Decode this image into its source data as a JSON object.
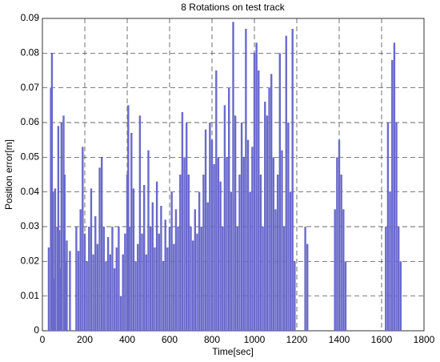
{
  "chart_data": {
    "type": "bar",
    "title": "8 Rotations on test track",
    "x_label": "Time[sec]",
    "y_label": "Position error[m]",
    "x": [
      30,
      40,
      45,
      50,
      55,
      60,
      70,
      75,
      80,
      85,
      90,
      100,
      105,
      110,
      115,
      130,
      160,
      170,
      180,
      190,
      200,
      210,
      220,
      230,
      240,
      250,
      260,
      270,
      280,
      290,
      300,
      310,
      320,
      330,
      340,
      350,
      360,
      370,
      380,
      390,
      400,
      405,
      410,
      420,
      430,
      440,
      450,
      460,
      470,
      480,
      490,
      500,
      510,
      520,
      530,
      540,
      550,
      560,
      570,
      580,
      590,
      600,
      610,
      620,
      630,
      640,
      650,
      660,
      670,
      680,
      690,
      700,
      710,
      720,
      730,
      740,
      750,
      760,
      770,
      780,
      790,
      800,
      810,
      820,
      830,
      840,
      850,
      860,
      870,
      880,
      890,
      900,
      910,
      920,
      930,
      940,
      950,
      960,
      970,
      980,
      990,
      1000,
      1010,
      1020,
      1030,
      1040,
      1050,
      1060,
      1070,
      1080,
      1090,
      1100,
      1110,
      1120,
      1130,
      1140,
      1150,
      1160,
      1170,
      1180,
      1190,
      1240,
      1250,
      1380,
      1390,
      1400,
      1410,
      1420,
      1430,
      1620,
      1630,
      1640,
      1650,
      1660,
      1670,
      1680,
      1690
    ],
    "values": [
      0.024,
      0.07,
      0.08,
      0.04,
      0.015,
      0.041,
      0.03,
      0.059,
      0.029,
      0.018,
      0.06,
      0.062,
      0.045,
      0.02,
      0.026,
      0.023,
      0.03,
      0.023,
      0.035,
      0.053,
      0.028,
      0.02,
      0.03,
      0.041,
      0.022,
      0.033,
      0.025,
      0.047,
      0.05,
      0.03,
      0.02,
      0.027,
      0.022,
      0.03,
      0.018,
      0.024,
      0.03,
      0.01,
      0.022,
      0.028,
      0.045,
      0.065,
      0.03,
      0.057,
      0.041,
      0.02,
      0.025,
      0.062,
      0.028,
      0.042,
      0.022,
      0.052,
      0.03,
      0.037,
      0.024,
      0.043,
      0.028,
      0.036,
      0.02,
      0.032,
      0.024,
      0.03,
      0.04,
      0.025,
      0.035,
      0.03,
      0.045,
      0.063,
      0.05,
      0.06,
      0.045,
      0.03,
      0.026,
      0.035,
      0.028,
      0.04,
      0.03,
      0.045,
      0.058,
      0.037,
      0.06,
      0.055,
      0.048,
      0.075,
      0.05,
      0.043,
      0.03,
      0.065,
      0.05,
      0.07,
      0.04,
      0.089,
      0.062,
      0.03,
      0.045,
      0.06,
      0.05,
      0.087,
      0.055,
      0.04,
      0.053,
      0.08,
      0.083,
      0.075,
      0.045,
      0.03,
      0.066,
      0.062,
      0.07,
      0.074,
      0.05,
      0.035,
      0.045,
      0.08,
      0.052,
      0.03,
      0.085,
      0.06,
      0.04,
      0.087,
      0.02,
      0.03,
      0.025,
      0.035,
      0.05,
      0.055,
      0.045,
      0.035,
      0.02,
      0.03,
      0.06,
      0.04,
      0.078,
      0.083,
      0.06,
      0.03,
      0.02
    ],
    "color": "#6a6acc",
    "xlim": [
      0,
      1800
    ],
    "xticks": [
      0,
      200,
      400,
      600,
      800,
      1000,
      1200,
      1400,
      1600,
      1800
    ],
    "ylim": [
      0,
      0.09
    ],
    "yticks": [
      0,
      0.01,
      0.02,
      0.03,
      0.04,
      0.05,
      0.06,
      0.07,
      0.08,
      0.09
    ],
    "grid": true
  }
}
